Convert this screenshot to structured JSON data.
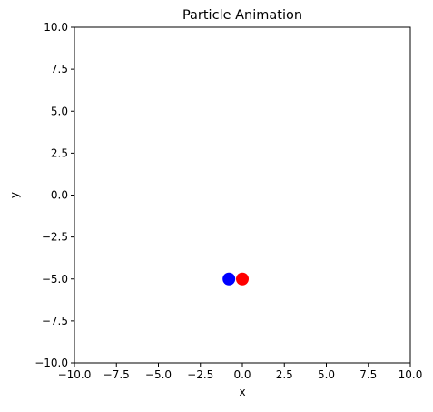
{
  "chart_data": {
    "type": "scatter",
    "title": "Particle Animation",
    "xlabel": "x",
    "ylabel": "y",
    "xlim": [
      -10,
      10
    ],
    "ylim": [
      -10,
      10
    ],
    "xticks": [
      -10,
      -7.5,
      -5,
      -2.5,
      0,
      2.5,
      5,
      7.5,
      10
    ],
    "xtick_labels": [
      "−10.0",
      "−7.5",
      "−5.0",
      "−2.5",
      "0.0",
      "2.5",
      "5.0",
      "7.5",
      "10.0"
    ],
    "yticks": [
      10,
      7.5,
      5,
      2.5,
      0,
      -2.5,
      -5,
      -7.5,
      -10
    ],
    "ytick_labels": [
      "10.0",
      "7.5",
      "5.0",
      "2.5",
      "0.0",
      "−2.5",
      "−5.0",
      "−7.5",
      "−10.0"
    ],
    "grid": false,
    "points": [
      {
        "x": -0.8,
        "y": -5.0,
        "color": "#0000ff"
      },
      {
        "x": 0.0,
        "y": -5.0,
        "color": "#ff0000"
      }
    ]
  }
}
